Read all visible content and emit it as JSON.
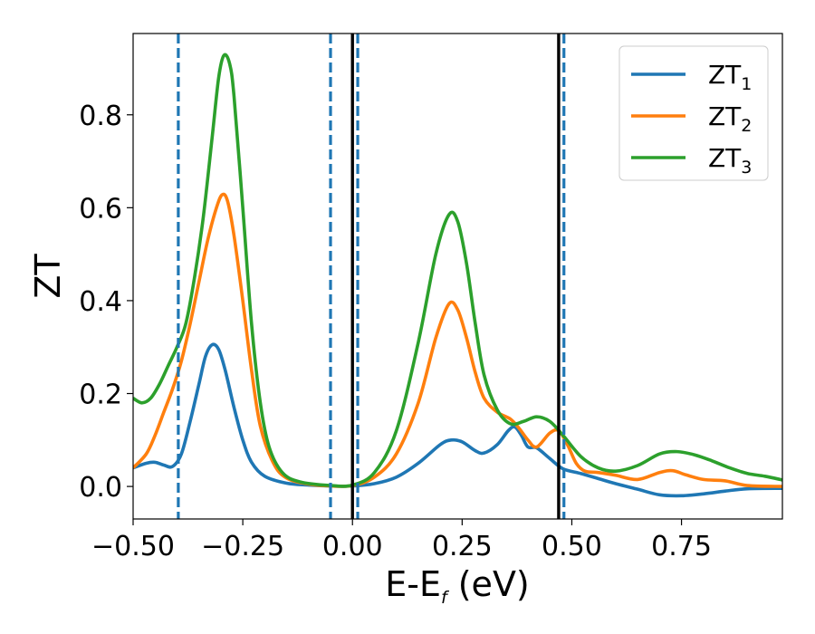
{
  "chart_data": {
    "type": "line",
    "title": "",
    "xlabel": {
      "main": "E-E",
      "sub": "f",
      "suffix": " (eV)"
    },
    "ylabel": "ZT",
    "xlim": [
      -0.5,
      0.98
    ],
    "ylim": [
      -0.07,
      0.975
    ],
    "grid": false,
    "legend_position": "top-right",
    "x_ticks": [
      -0.5,
      -0.25,
      0.0,
      0.25,
      0.5,
      0.75
    ],
    "x_tick_labels": [
      "−0.50",
      "−0.25",
      "0.00",
      "0.25",
      "0.50",
      "0.75"
    ],
    "y_ticks": [
      0.0,
      0.2,
      0.4,
      0.6,
      0.8
    ],
    "y_tick_labels": [
      "0.0",
      "0.2",
      "0.4",
      "0.6",
      "0.8"
    ],
    "vertical_lines": [
      {
        "x": -0.397,
        "style": "dashed",
        "color": "#1f77b4"
      },
      {
        "x": -0.05,
        "style": "dashed",
        "color": "#1f77b4"
      },
      {
        "x": 0.012,
        "style": "dashed",
        "color": "#1f77b4"
      },
      {
        "x": 0.0,
        "style": "solid",
        "color": "#000000"
      },
      {
        "x": 0.47,
        "style": "solid",
        "color": "#000000"
      },
      {
        "x": 0.482,
        "style": "dashed",
        "color": "#1f77b4"
      }
    ],
    "series": [
      {
        "name": "ZT",
        "sub": "1",
        "color": "#1f77b4",
        "points": [
          [
            -0.5,
            0.04
          ],
          [
            -0.47,
            0.05
          ],
          [
            -0.45,
            0.052
          ],
          [
            -0.43,
            0.046
          ],
          [
            -0.41,
            0.043
          ],
          [
            -0.39,
            0.07
          ],
          [
            -0.37,
            0.14
          ],
          [
            -0.35,
            0.22
          ],
          [
            -0.335,
            0.28
          ],
          [
            -0.32,
            0.305
          ],
          [
            -0.305,
            0.295
          ],
          [
            -0.29,
            0.25
          ],
          [
            -0.27,
            0.17
          ],
          [
            -0.25,
            0.1
          ],
          [
            -0.23,
            0.052
          ],
          [
            -0.2,
            0.022
          ],
          [
            -0.15,
            0.007
          ],
          [
            -0.1,
            0.003
          ],
          [
            -0.05,
            0.001
          ],
          [
            0.0,
            0.001
          ],
          [
            0.05,
            0.006
          ],
          [
            0.1,
            0.02
          ],
          [
            0.15,
            0.05
          ],
          [
            0.2,
            0.09
          ],
          [
            0.225,
            0.1
          ],
          [
            0.25,
            0.096
          ],
          [
            0.28,
            0.077
          ],
          [
            0.3,
            0.072
          ],
          [
            0.33,
            0.09
          ],
          [
            0.355,
            0.12
          ],
          [
            0.37,
            0.128
          ],
          [
            0.385,
            0.11
          ],
          [
            0.4,
            0.085
          ],
          [
            0.42,
            0.083
          ],
          [
            0.45,
            0.06
          ],
          [
            0.48,
            0.038
          ],
          [
            0.52,
            0.028
          ],
          [
            0.56,
            0.017
          ],
          [
            0.6,
            0.006
          ],
          [
            0.65,
            -0.006
          ],
          [
            0.7,
            -0.018
          ],
          [
            0.75,
            -0.02
          ],
          [
            0.8,
            -0.016
          ],
          [
            0.85,
            -0.01
          ],
          [
            0.9,
            -0.005
          ],
          [
            0.98,
            -0.004
          ]
        ]
      },
      {
        "name": "ZT",
        "sub": "2",
        "color": "#ff7f0e",
        "points": [
          [
            -0.5,
            0.04
          ],
          [
            -0.47,
            0.07
          ],
          [
            -0.45,
            0.11
          ],
          [
            -0.43,
            0.16
          ],
          [
            -0.41,
            0.21
          ],
          [
            -0.39,
            0.27
          ],
          [
            -0.37,
            0.35
          ],
          [
            -0.35,
            0.44
          ],
          [
            -0.33,
            0.53
          ],
          [
            -0.31,
            0.6
          ],
          [
            -0.297,
            0.628
          ],
          [
            -0.285,
            0.615
          ],
          [
            -0.27,
            0.54
          ],
          [
            -0.25,
            0.4
          ],
          [
            -0.23,
            0.25
          ],
          [
            -0.21,
            0.13
          ],
          [
            -0.18,
            0.05
          ],
          [
            -0.15,
            0.018
          ],
          [
            -0.1,
            0.005
          ],
          [
            -0.05,
            0.001
          ],
          [
            0.0,
            0.002
          ],
          [
            0.05,
            0.02
          ],
          [
            0.1,
            0.07
          ],
          [
            0.15,
            0.18
          ],
          [
            0.19,
            0.32
          ],
          [
            0.22,
            0.393
          ],
          [
            0.24,
            0.38
          ],
          [
            0.26,
            0.32
          ],
          [
            0.28,
            0.245
          ],
          [
            0.3,
            0.19
          ],
          [
            0.33,
            0.16
          ],
          [
            0.36,
            0.145
          ],
          [
            0.38,
            0.125
          ],
          [
            0.4,
            0.1
          ],
          [
            0.42,
            0.085
          ],
          [
            0.45,
            0.115
          ],
          [
            0.47,
            0.12
          ],
          [
            0.49,
            0.09
          ],
          [
            0.51,
            0.05
          ],
          [
            0.53,
            0.033
          ],
          [
            0.56,
            0.03
          ],
          [
            0.6,
            0.024
          ],
          [
            0.65,
            0.015
          ],
          [
            0.7,
            0.03
          ],
          [
            0.73,
            0.034
          ],
          [
            0.76,
            0.025
          ],
          [
            0.8,
            0.015
          ],
          [
            0.85,
            0.012
          ],
          [
            0.9,
            0.002
          ],
          [
            0.98,
            0.0
          ]
        ]
      },
      {
        "name": "ZT",
        "sub": "3",
        "color": "#2ca02c",
        "points": [
          [
            -0.5,
            0.19
          ],
          [
            -0.48,
            0.18
          ],
          [
            -0.46,
            0.19
          ],
          [
            -0.44,
            0.22
          ],
          [
            -0.42,
            0.26
          ],
          [
            -0.4,
            0.3
          ],
          [
            -0.38,
            0.35
          ],
          [
            -0.36,
            0.45
          ],
          [
            -0.34,
            0.58
          ],
          [
            -0.32,
            0.75
          ],
          [
            -0.305,
            0.88
          ],
          [
            -0.293,
            0.928
          ],
          [
            -0.28,
            0.91
          ],
          [
            -0.27,
            0.84
          ],
          [
            -0.25,
            0.6
          ],
          [
            -0.23,
            0.35
          ],
          [
            -0.21,
            0.18
          ],
          [
            -0.19,
            0.085
          ],
          [
            -0.16,
            0.03
          ],
          [
            -0.12,
            0.01
          ],
          [
            -0.05,
            0.002
          ],
          [
            0.0,
            0.003
          ],
          [
            0.05,
            0.03
          ],
          [
            0.1,
            0.12
          ],
          [
            0.15,
            0.31
          ],
          [
            0.19,
            0.5
          ],
          [
            0.22,
            0.585
          ],
          [
            0.24,
            0.57
          ],
          [
            0.26,
            0.48
          ],
          [
            0.28,
            0.35
          ],
          [
            0.3,
            0.24
          ],
          [
            0.33,
            0.165
          ],
          [
            0.36,
            0.135
          ],
          [
            0.39,
            0.14
          ],
          [
            0.42,
            0.15
          ],
          [
            0.45,
            0.14
          ],
          [
            0.48,
            0.11
          ],
          [
            0.52,
            0.065
          ],
          [
            0.56,
            0.04
          ],
          [
            0.6,
            0.033
          ],
          [
            0.65,
            0.045
          ],
          [
            0.7,
            0.07
          ],
          [
            0.74,
            0.075
          ],
          [
            0.78,
            0.068
          ],
          [
            0.82,
            0.055
          ],
          [
            0.86,
            0.04
          ],
          [
            0.9,
            0.028
          ],
          [
            0.94,
            0.022
          ],
          [
            0.98,
            0.014
          ]
        ]
      }
    ]
  }
}
